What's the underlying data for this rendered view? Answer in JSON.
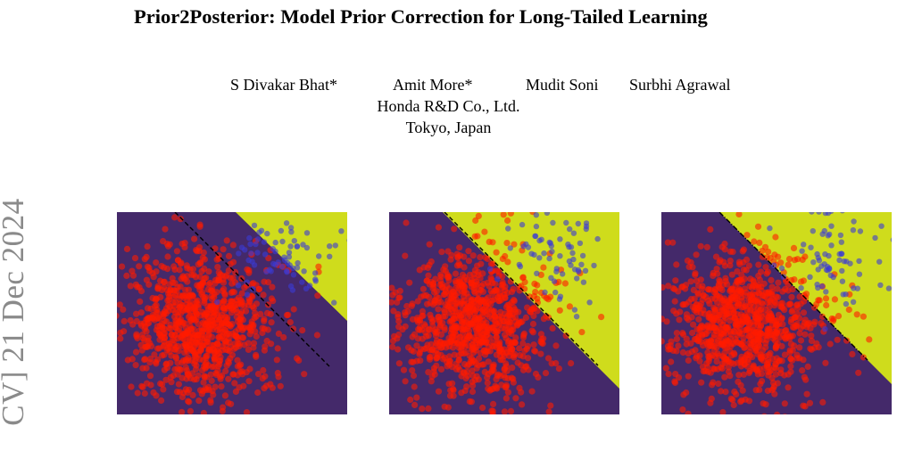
{
  "paper": {
    "title": "Prior2Posterior: Model Prior Correction for Long-Tailed Learning",
    "authors": [
      "S Divakar Bhat*",
      "Amit More*",
      "Mudit Soni",
      "Surbhi Agrawal"
    ],
    "affiliation": "Honda R&D Co., Ltd.",
    "location": "Tokyo, Japan",
    "arxiv_stamp": "CV]  21 Dec 2024"
  },
  "figure": {
    "colors": {
      "majority_region": "#44296a",
      "minority_region": "#cfdc1c",
      "majority_points": "#ff1a00",
      "minority_points": "#3b3bd6",
      "boundary": "#000000"
    },
    "panels": [
      {
        "id": "panel-1",
        "boundary_style": "dashed"
      },
      {
        "id": "panel-2",
        "boundary_style": "dashed"
      },
      {
        "id": "panel-3",
        "boundary_style": "dashdot"
      }
    ]
  }
}
